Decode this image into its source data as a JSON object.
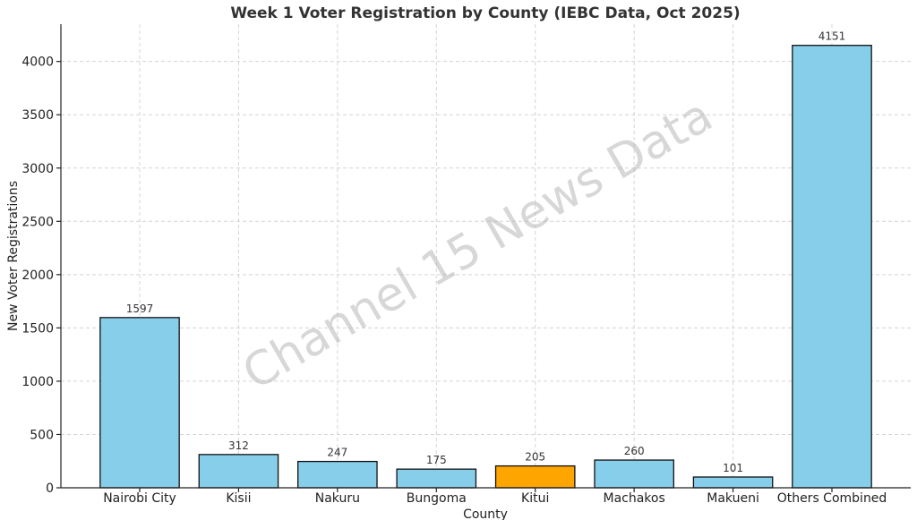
{
  "chart_data": {
    "type": "bar",
    "title": "Week 1 Voter Registration by County (IEBC Data, Oct 2025)",
    "xlabel": "County",
    "ylabel": "New Voter Registrations",
    "categories": [
      "Nairobi City",
      "Kisii",
      "Nakuru",
      "Bungoma",
      "Kitui",
      "Machakos",
      "Makueni",
      "Others Combined"
    ],
    "values": [
      1597,
      312,
      247,
      175,
      205,
      260,
      101,
      4151
    ],
    "bar_colors": [
      "#87ceeb",
      "#87ceeb",
      "#87ceeb",
      "#87ceeb",
      "#ffa500",
      "#87ceeb",
      "#87ceeb",
      "#87ceeb"
    ],
    "bar_edge_color": "#111111",
    "ylim": [
      0,
      4350
    ],
    "yticks": [
      0,
      500,
      1000,
      1500,
      2000,
      2500,
      3000,
      3500,
      4000
    ],
    "grid": true,
    "watermark": "Channel 15 News Data"
  }
}
